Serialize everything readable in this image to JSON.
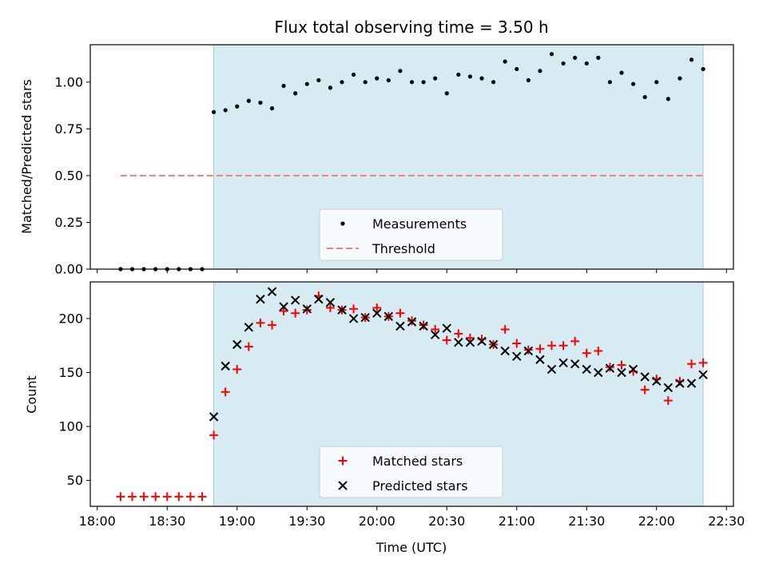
{
  "title": "Flux total observing time = 3.50 h",
  "xlabel": "Time (UTC)",
  "chart_data": [
    {
      "type": "scatter",
      "panel": "top",
      "ylabel": "Matched/Predicted stars",
      "ylim": [
        0,
        1.2
      ],
      "yticks": [
        0.0,
        0.25,
        0.5,
        0.75,
        1.0
      ],
      "ytick_labels": [
        "0.00",
        "0.25",
        "0.50",
        "0.75",
        "1.00"
      ],
      "xlim": [
        "17:57",
        "22:33"
      ],
      "xtick_labels": [
        "18:00",
        "18:30",
        "19:00",
        "19:30",
        "20:00",
        "20:30",
        "21:00",
        "21:30",
        "22:00",
        "22:30"
      ],
      "shaded_region": [
        "18:50",
        "22:20"
      ],
      "series": [
        {
          "name": "Measurements",
          "kind": "points",
          "color": "#000000",
          "x": [
            "18:10",
            "18:15",
            "18:20",
            "18:25",
            "18:30",
            "18:35",
            "18:40",
            "18:45",
            "18:50",
            "18:55",
            "19:00",
            "19:05",
            "19:10",
            "19:15",
            "19:20",
            "19:25",
            "19:30",
            "19:35",
            "19:40",
            "19:45",
            "19:50",
            "19:55",
            "20:00",
            "20:05",
            "20:10",
            "20:15",
            "20:20",
            "20:25",
            "20:30",
            "20:35",
            "20:40",
            "20:45",
            "20:50",
            "20:55",
            "21:00",
            "21:05",
            "21:10",
            "21:15",
            "21:20",
            "21:25",
            "21:30",
            "21:35",
            "21:40",
            "21:45",
            "21:50",
            "21:55",
            "22:00",
            "22:05",
            "22:10",
            "22:15",
            "22:20"
          ],
          "y": [
            0.0,
            0.0,
            0.0,
            0.0,
            0.0,
            0.0,
            0.0,
            0.0,
            0.84,
            0.85,
            0.87,
            0.9,
            0.89,
            0.86,
            0.98,
            0.94,
            0.99,
            1.01,
            0.97,
            1.0,
            1.04,
            1.0,
            1.02,
            1.01,
            1.06,
            1.0,
            1.0,
            1.02,
            0.94,
            1.04,
            1.03,
            1.02,
            1.0,
            1.11,
            1.07,
            1.01,
            1.06,
            1.15,
            1.1,
            1.13,
            1.1,
            1.13,
            1.0,
            1.05,
            0.99,
            0.92,
            1.0,
            0.91,
            1.02,
            1.12,
            1.07
          ]
        },
        {
          "name": "Threshold",
          "kind": "dashed-line",
          "color": "#f08080",
          "x": [
            "18:10",
            "22:20"
          ],
          "y": [
            0.5,
            0.5
          ]
        }
      ],
      "legend_location": "lower center"
    },
    {
      "type": "scatter",
      "panel": "bottom",
      "ylabel": "Count",
      "ylim": [
        26,
        234
      ],
      "yticks": [
        50,
        100,
        150,
        200
      ],
      "ytick_labels": [
        "50",
        "100",
        "150",
        "200"
      ],
      "xlim": [
        "17:57",
        "22:33"
      ],
      "xtick_labels": [
        "18:00",
        "18:30",
        "19:00",
        "19:30",
        "20:00",
        "20:30",
        "21:00",
        "21:30",
        "22:00",
        "22:30"
      ],
      "shaded_region": [
        "18:50",
        "22:20"
      ],
      "series": [
        {
          "name": "Matched stars",
          "marker": "plus",
          "color": "#ff0000",
          "x": [
            "18:10",
            "18:15",
            "18:20",
            "18:25",
            "18:30",
            "18:35",
            "18:40",
            "18:45",
            "18:50",
            "18:55",
            "19:00",
            "19:05",
            "19:10",
            "19:15",
            "19:20",
            "19:25",
            "19:30",
            "19:35",
            "19:40",
            "19:45",
            "19:50",
            "19:55",
            "20:00",
            "20:05",
            "20:10",
            "20:15",
            "20:20",
            "20:25",
            "20:30",
            "20:35",
            "20:40",
            "20:45",
            "20:50",
            "20:55",
            "21:00",
            "21:05",
            "21:10",
            "21:15",
            "21:20",
            "21:25",
            "21:30",
            "21:35",
            "21:40",
            "21:45",
            "21:50",
            "21:55",
            "22:00",
            "22:05",
            "22:10",
            "22:15",
            "22:20"
          ],
          "y": [
            35,
            35,
            35,
            35,
            35,
            35,
            35,
            35,
            92,
            132,
            153,
            174,
            196,
            194,
            207,
            205,
            208,
            221,
            210,
            208,
            209,
            201,
            210,
            202,
            205,
            198,
            194,
            190,
            180,
            186,
            182,
            181,
            176,
            190,
            177,
            171,
            172,
            175,
            175,
            179,
            168,
            170,
            155,
            157,
            151,
            134,
            144,
            124,
            142,
            158,
            159
          ]
        },
        {
          "name": "Predicted stars",
          "marker": "x",
          "color": "#000000",
          "x": [
            "18:50",
            "18:55",
            "19:00",
            "19:05",
            "19:10",
            "19:15",
            "19:20",
            "19:25",
            "19:30",
            "19:35",
            "19:40",
            "19:45",
            "19:50",
            "19:55",
            "20:00",
            "20:05",
            "20:10",
            "20:15",
            "20:20",
            "20:25",
            "20:30",
            "20:35",
            "20:40",
            "20:45",
            "20:50",
            "20:55",
            "21:00",
            "21:05",
            "21:10",
            "21:15",
            "21:20",
            "21:25",
            "21:30",
            "21:35",
            "21:40",
            "21:45",
            "21:50",
            "21:55",
            "22:00",
            "22:05",
            "22:10",
            "22:15",
            "22:20"
          ],
          "y": [
            109,
            156,
            176,
            192,
            218,
            225,
            211,
            217,
            209,
            218,
            215,
            208,
            200,
            201,
            205,
            202,
            193,
            197,
            193,
            185,
            191,
            178,
            178,
            179,
            176,
            170,
            165,
            170,
            162,
            153,
            159,
            158,
            153,
            150,
            154,
            150,
            153,
            146,
            142,
            136,
            140,
            140,
            148
          ]
        }
      ],
      "legend_location": "lower center"
    }
  ]
}
